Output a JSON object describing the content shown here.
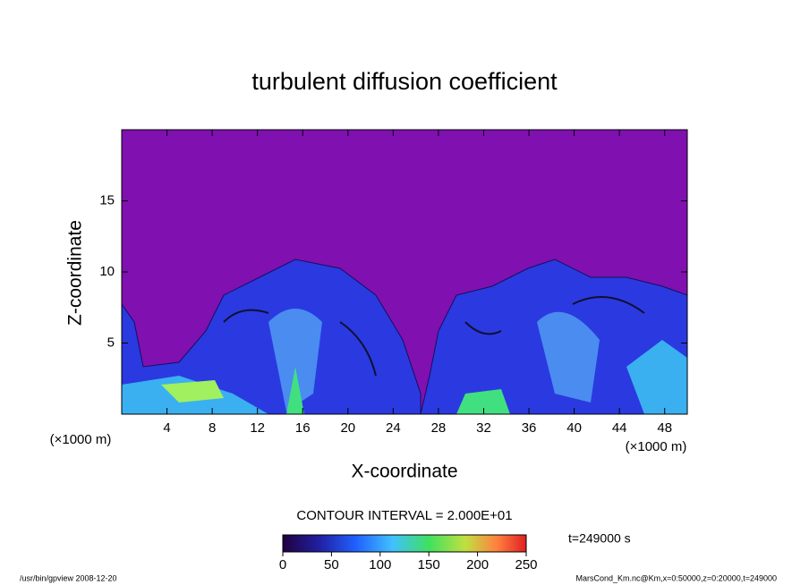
{
  "chart_data": {
    "type": "contour",
    "title": "turbulent diffusion coefficient",
    "x_label": "X-coordinate",
    "y_label": "Z-coordinate",
    "x_unit": "(×1000 m)",
    "y_unit": "(×1000 m)",
    "xlim": [
      0,
      50
    ],
    "xticks": [
      4,
      8,
      12,
      16,
      20,
      24,
      28,
      32,
      36,
      40,
      44,
      48
    ],
    "ylim": [
      0,
      20
    ],
    "yticks": [
      5,
      10,
      15
    ],
    "contour_interval": "CONTOUR INTERVAL = 2.000E+01",
    "colorbar": {
      "lim": [
        0,
        250
      ],
      "ticks": [
        0,
        50,
        100,
        150,
        200,
        250
      ]
    },
    "time_label": "t=249000 s",
    "footer_left": "/usr/bin/gpview  2008-12-20",
    "footer_right": "MarsCond_Km.nc@Km,x=0:50000,z=0:20000,t=249000"
  }
}
